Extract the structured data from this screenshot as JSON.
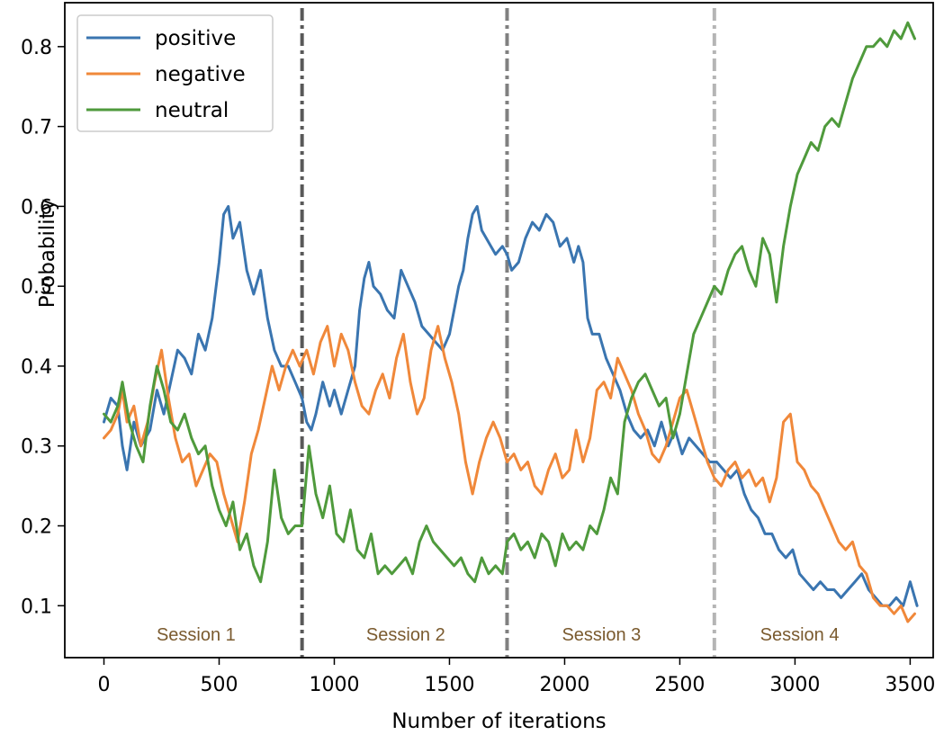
{
  "chart_data": {
    "type": "line",
    "title": "",
    "xlabel": "Number of iterations",
    "ylabel": "Probability",
    "xlim": [
      -170,
      3600
    ],
    "ylim": [
      0.035,
      0.855
    ],
    "xticks": [
      0,
      500,
      1000,
      1500,
      2000,
      2500,
      3000,
      3500
    ],
    "yticks": [
      0.1,
      0.2,
      0.3,
      0.4,
      0.5,
      0.6,
      0.7,
      0.8
    ],
    "grid": false,
    "legend_position": "top-left",
    "session_boundaries": [
      {
        "x": 860,
        "color": "#595959"
      },
      {
        "x": 1750,
        "color": "#808080"
      },
      {
        "x": 2650,
        "color": "#b5b5b5"
      }
    ],
    "session_labels": [
      {
        "text": "Session 1",
        "x": 400
      },
      {
        "text": "Session 2",
        "x": 1310
      },
      {
        "text": "Session 3",
        "x": 2160
      },
      {
        "text": "Session 4",
        "x": 3020
      }
    ],
    "session_label_color": "#7a5a2e",
    "series": [
      {
        "name": "positive",
        "color": "#3a75b0",
        "x": [
          0,
          30,
          60,
          80,
          100,
          130,
          160,
          200,
          230,
          260,
          290,
          320,
          350,
          380,
          410,
          440,
          470,
          500,
          520,
          540,
          560,
          590,
          620,
          650,
          680,
          710,
          740,
          770,
          800,
          830,
          860,
          880,
          900,
          920,
          950,
          980,
          1000,
          1030,
          1060,
          1090,
          1110,
          1130,
          1150,
          1170,
          1200,
          1230,
          1260,
          1290,
          1320,
          1350,
          1380,
          1410,
          1440,
          1470,
          1500,
          1520,
          1540,
          1560,
          1580,
          1600,
          1620,
          1640,
          1660,
          1680,
          1700,
          1730,
          1750,
          1770,
          1800,
          1830,
          1860,
          1890,
          1920,
          1950,
          1980,
          2010,
          2040,
          2060,
          2080,
          2100,
          2120,
          2150,
          2180,
          2210,
          2240,
          2270,
          2300,
          2330,
          2360,
          2390,
          2420,
          2450,
          2480,
          2510,
          2540,
          2570,
          2600,
          2630,
          2660,
          2690,
          2720,
          2750,
          2780,
          2810,
          2840,
          2870,
          2900,
          2930,
          2960,
          2990,
          3020,
          3050,
          3080,
          3110,
          3140,
          3170,
          3200,
          3230,
          3260,
          3290,
          3320,
          3350,
          3380,
          3410,
          3440,
          3470,
          3500,
          3530
        ],
        "values": [
          0.33,
          0.36,
          0.35,
          0.3,
          0.27,
          0.33,
          0.3,
          0.32,
          0.37,
          0.34,
          0.38,
          0.42,
          0.41,
          0.39,
          0.44,
          0.42,
          0.46,
          0.53,
          0.59,
          0.6,
          0.56,
          0.58,
          0.52,
          0.49,
          0.52,
          0.46,
          0.42,
          0.4,
          0.4,
          0.38,
          0.36,
          0.33,
          0.32,
          0.34,
          0.38,
          0.35,
          0.37,
          0.34,
          0.37,
          0.4,
          0.47,
          0.51,
          0.53,
          0.5,
          0.49,
          0.47,
          0.46,
          0.52,
          0.5,
          0.48,
          0.45,
          0.44,
          0.43,
          0.42,
          0.44,
          0.47,
          0.5,
          0.52,
          0.56,
          0.59,
          0.6,
          0.57,
          0.56,
          0.55,
          0.54,
          0.55,
          0.54,
          0.52,
          0.53,
          0.56,
          0.58,
          0.57,
          0.59,
          0.58,
          0.55,
          0.56,
          0.53,
          0.55,
          0.53,
          0.46,
          0.44,
          0.44,
          0.41,
          0.39,
          0.37,
          0.34,
          0.32,
          0.31,
          0.32,
          0.3,
          0.33,
          0.3,
          0.32,
          0.29,
          0.31,
          0.3,
          0.29,
          0.28,
          0.28,
          0.27,
          0.26,
          0.27,
          0.24,
          0.22,
          0.21,
          0.19,
          0.19,
          0.17,
          0.16,
          0.17,
          0.14,
          0.13,
          0.12,
          0.13,
          0.12,
          0.12,
          0.11,
          0.12,
          0.13,
          0.14,
          0.12,
          0.11,
          0.1,
          0.1,
          0.11,
          0.1,
          0.13,
          0.1
        ]
      },
      {
        "name": "negative",
        "color": "#f0883a",
        "x": [
          0,
          30,
          60,
          80,
          100,
          130,
          160,
          190,
          220,
          250,
          280,
          310,
          340,
          370,
          400,
          430,
          460,
          490,
          520,
          550,
          580,
          610,
          640,
          670,
          700,
          730,
          760,
          790,
          820,
          850,
          880,
          910,
          940,
          970,
          1000,
          1030,
          1060,
          1090,
          1120,
          1150,
          1180,
          1210,
          1240,
          1270,
          1300,
          1330,
          1360,
          1390,
          1420,
          1450,
          1480,
          1510,
          1540,
          1570,
          1600,
          1630,
          1660,
          1690,
          1720,
          1750,
          1780,
          1810,
          1840,
          1870,
          1900,
          1930,
          1960,
          1990,
          2020,
          2050,
          2080,
          2110,
          2140,
          2170,
          2200,
          2230,
          2260,
          2290,
          2320,
          2350,
          2380,
          2410,
          2440,
          2470,
          2500,
          2530,
          2560,
          2590,
          2620,
          2650,
          2680,
          2710,
          2740,
          2770,
          2800,
          2830,
          2860,
          2890,
          2920,
          2950,
          2980,
          3010,
          3040,
          3070,
          3100,
          3130,
          3160,
          3190,
          3220,
          3250,
          3280,
          3310,
          3340,
          3370,
          3400,
          3430,
          3460,
          3490,
          3520
        ],
        "values": [
          0.31,
          0.32,
          0.34,
          0.37,
          0.33,
          0.35,
          0.3,
          0.33,
          0.38,
          0.42,
          0.36,
          0.31,
          0.28,
          0.29,
          0.25,
          0.27,
          0.29,
          0.28,
          0.24,
          0.21,
          0.18,
          0.23,
          0.29,
          0.32,
          0.36,
          0.4,
          0.37,
          0.4,
          0.42,
          0.4,
          0.42,
          0.39,
          0.43,
          0.45,
          0.4,
          0.44,
          0.42,
          0.38,
          0.35,
          0.34,
          0.37,
          0.39,
          0.36,
          0.41,
          0.44,
          0.38,
          0.34,
          0.36,
          0.42,
          0.45,
          0.41,
          0.38,
          0.34,
          0.28,
          0.24,
          0.28,
          0.31,
          0.33,
          0.31,
          0.28,
          0.29,
          0.27,
          0.28,
          0.25,
          0.24,
          0.27,
          0.29,
          0.26,
          0.27,
          0.32,
          0.28,
          0.31,
          0.37,
          0.38,
          0.36,
          0.41,
          0.39,
          0.37,
          0.34,
          0.32,
          0.29,
          0.28,
          0.3,
          0.33,
          0.36,
          0.37,
          0.34,
          0.31,
          0.28,
          0.26,
          0.25,
          0.27,
          0.28,
          0.26,
          0.27,
          0.25,
          0.26,
          0.23,
          0.26,
          0.33,
          0.34,
          0.28,
          0.27,
          0.25,
          0.24,
          0.22,
          0.2,
          0.18,
          0.17,
          0.18,
          0.15,
          0.14,
          0.11,
          0.1,
          0.1,
          0.09,
          0.1,
          0.08,
          0.09
        ]
      },
      {
        "name": "neutral",
        "color": "#4f9a3c",
        "x": [
          0,
          30,
          60,
          80,
          110,
          140,
          170,
          200,
          230,
          260,
          290,
          320,
          350,
          380,
          410,
          440,
          470,
          500,
          530,
          560,
          590,
          620,
          650,
          680,
          710,
          740,
          770,
          800,
          830,
          860,
          890,
          920,
          950,
          980,
          1010,
          1040,
          1070,
          1100,
          1130,
          1160,
          1190,
          1220,
          1250,
          1280,
          1310,
          1340,
          1370,
          1400,
          1430,
          1460,
          1490,
          1520,
          1550,
          1580,
          1610,
          1640,
          1670,
          1700,
          1730,
          1750,
          1780,
          1810,
          1840,
          1870,
          1900,
          1930,
          1960,
          1990,
          2020,
          2050,
          2080,
          2110,
          2140,
          2170,
          2200,
          2230,
          2260,
          2290,
          2320,
          2350,
          2380,
          2410,
          2440,
          2470,
          2500,
          2530,
          2560,
          2590,
          2620,
          2650,
          2680,
          2710,
          2740,
          2770,
          2800,
          2830,
          2860,
          2890,
          2920,
          2950,
          2980,
          3010,
          3040,
          3070,
          3100,
          3130,
          3160,
          3190,
          3220,
          3250,
          3280,
          3310,
          3340,
          3370,
          3400,
          3430,
          3460,
          3490,
          3520
        ],
        "values": [
          0.34,
          0.33,
          0.35,
          0.38,
          0.33,
          0.3,
          0.28,
          0.35,
          0.4,
          0.37,
          0.33,
          0.32,
          0.34,
          0.31,
          0.29,
          0.3,
          0.25,
          0.22,
          0.2,
          0.23,
          0.17,
          0.19,
          0.15,
          0.13,
          0.18,
          0.27,
          0.21,
          0.19,
          0.2,
          0.2,
          0.3,
          0.24,
          0.21,
          0.25,
          0.19,
          0.18,
          0.22,
          0.17,
          0.16,
          0.19,
          0.14,
          0.15,
          0.14,
          0.15,
          0.16,
          0.14,
          0.18,
          0.2,
          0.18,
          0.17,
          0.16,
          0.15,
          0.16,
          0.14,
          0.13,
          0.16,
          0.14,
          0.15,
          0.14,
          0.18,
          0.19,
          0.17,
          0.18,
          0.16,
          0.19,
          0.18,
          0.15,
          0.19,
          0.17,
          0.18,
          0.17,
          0.2,
          0.19,
          0.22,
          0.26,
          0.24,
          0.33,
          0.36,
          0.38,
          0.39,
          0.37,
          0.35,
          0.36,
          0.31,
          0.34,
          0.39,
          0.44,
          0.46,
          0.48,
          0.5,
          0.49,
          0.52,
          0.54,
          0.55,
          0.52,
          0.5,
          0.56,
          0.54,
          0.48,
          0.55,
          0.6,
          0.64,
          0.66,
          0.68,
          0.67,
          0.7,
          0.71,
          0.7,
          0.73,
          0.76,
          0.78,
          0.8,
          0.8,
          0.81,
          0.8,
          0.82,
          0.81,
          0.83,
          0.81
        ]
      }
    ]
  }
}
